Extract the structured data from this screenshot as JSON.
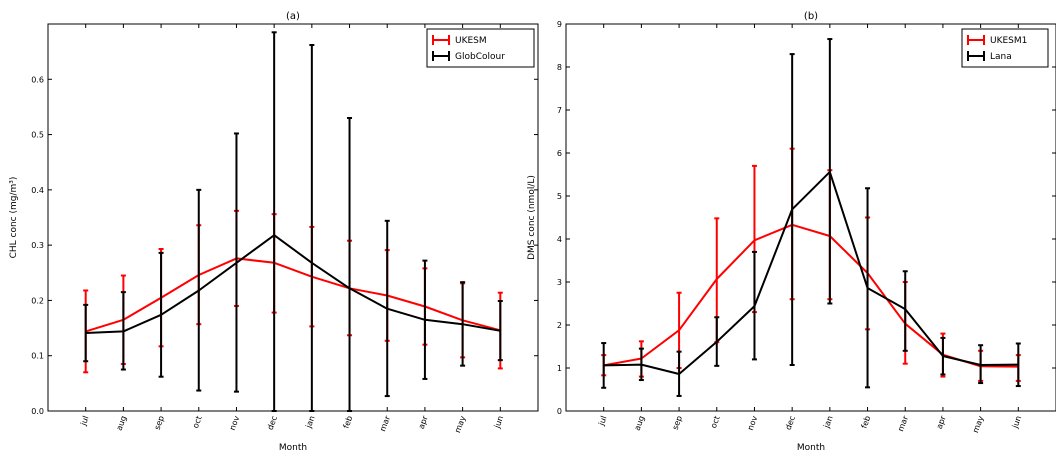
{
  "chart_data": [
    {
      "type": "line",
      "title": "(a)",
      "xlabel": "Month",
      "ylabel": "CHL conc (mg/m³)",
      "categories": [
        "jul",
        "aug",
        "sep",
        "oct",
        "nov",
        "dec",
        "jan",
        "feb",
        "mar",
        "apr",
        "may",
        "jun"
      ],
      "ylim": [
        0,
        0.7
      ],
      "yticks": [
        0.0,
        0.1,
        0.2,
        0.3,
        0.4,
        0.5,
        0.6
      ],
      "ytick_labels": [
        "0.0",
        "0.1",
        "0.2",
        "0.3",
        "0.4",
        "0.5",
        "0.6"
      ],
      "grid": false,
      "legend": "top-right",
      "series": [
        {
          "name": "UKESM",
          "color": "#ff0000",
          "values": [
            0.144,
            0.165,
            0.205,
            0.246,
            0.276,
            0.268,
            0.243,
            0.222,
            0.209,
            0.189,
            0.164,
            0.146
          ],
          "lower": [
            0.07,
            0.085,
            0.117,
            0.157,
            0.19,
            0.178,
            0.153,
            0.137,
            0.127,
            0.12,
            0.097,
            0.077
          ],
          "upper": [
            0.218,
            0.245,
            0.293,
            0.336,
            0.362,
            0.356,
            0.333,
            0.308,
            0.291,
            0.258,
            0.231,
            0.214
          ]
        },
        {
          "name": "GlobColour",
          "color": "#000000",
          "values": [
            0.141,
            0.144,
            0.174,
            0.218,
            0.268,
            0.318,
            0.268,
            0.222,
            0.185,
            0.165,
            0.157,
            0.145
          ],
          "lower": [
            0.09,
            0.075,
            0.062,
            0.037,
            0.035,
            0.0,
            0.0,
            0.0,
            0.027,
            0.058,
            0.082,
            0.092
          ],
          "upper": [
            0.192,
            0.215,
            0.286,
            0.4,
            0.502,
            0.685,
            0.662,
            0.53,
            0.344,
            0.272,
            0.233,
            0.199
          ]
        }
      ]
    },
    {
      "type": "line",
      "title": "(b)",
      "xlabel": "Month",
      "ylabel": "DMS conc (nmol/L)",
      "categories": [
        "jul",
        "aug",
        "sep",
        "oct",
        "nov",
        "dec",
        "jan",
        "feb",
        "mar",
        "apr",
        "may",
        "jun"
      ],
      "ylim": [
        0,
        9
      ],
      "yticks": [
        0,
        1,
        2,
        3,
        4,
        5,
        6,
        7,
        8,
        9
      ],
      "ytick_labels": [
        "0",
        "1",
        "2",
        "3",
        "4",
        "5",
        "6",
        "7",
        "8",
        "9"
      ],
      "grid": false,
      "legend": "top-right",
      "series": [
        {
          "name": "UKESM1",
          "color": "#ff0000",
          "values": [
            1.06,
            1.22,
            1.88,
            3.07,
            3.97,
            4.33,
            4.07,
            3.21,
            2.03,
            1.31,
            1.04,
            1.03
          ],
          "lower": [
            0.83,
            0.8,
            1.0,
            1.6,
            2.3,
            2.6,
            2.6,
            1.9,
            1.1,
            0.8,
            0.7,
            0.7
          ],
          "upper": [
            1.3,
            1.62,
            2.75,
            4.48,
            5.7,
            6.1,
            5.6,
            4.5,
            3.0,
            1.8,
            1.4,
            1.3
          ]
        },
        {
          "name": "Lana",
          "color": "#000000",
          "values": [
            1.06,
            1.08,
            0.86,
            1.61,
            2.44,
            4.69,
            5.56,
            2.86,
            2.37,
            1.28,
            1.07,
            1.08
          ],
          "lower": [
            0.54,
            0.72,
            0.35,
            1.05,
            1.2,
            1.07,
            2.5,
            0.55,
            1.4,
            0.85,
            0.65,
            0.58
          ],
          "upper": [
            1.58,
            1.45,
            1.38,
            2.18,
            3.7,
            8.3,
            8.65,
            5.18,
            3.25,
            1.7,
            1.53,
            1.57
          ]
        }
      ]
    }
  ]
}
